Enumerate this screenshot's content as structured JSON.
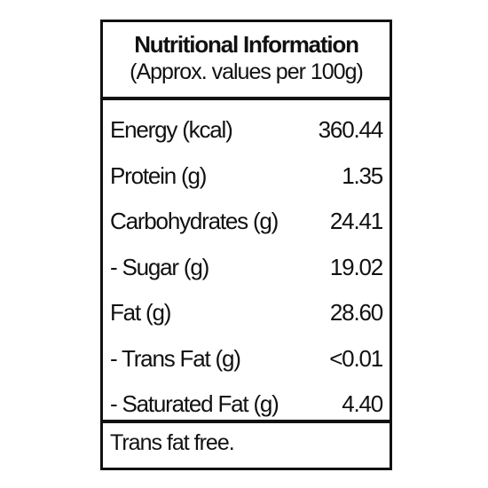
{
  "header": {
    "title": "Nutritional Information",
    "subtitle": "(Approx. values per 100g)"
  },
  "table": {
    "rows": [
      [
        "Energy (kcal)",
        "360.44"
      ],
      [
        "Protein (g)",
        "1.35"
      ],
      [
        "Carbohydrates (g)",
        "24.41"
      ],
      [
        "- Sugar (g)",
        "19.02"
      ],
      [
        "Fat (g)",
        "28.60"
      ],
      [
        "- Trans Fat (g)",
        "<0.01"
      ],
      [
        "- Saturated Fat (g)",
        "4.40"
      ]
    ]
  },
  "footer": "Trans fat free."
}
